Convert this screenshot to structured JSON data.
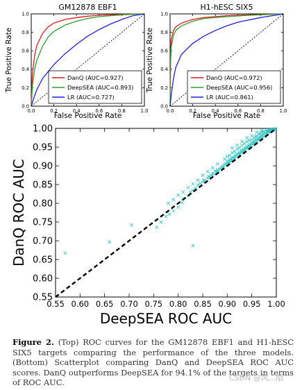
{
  "roc_panels": [
    {
      "title": "GM12878 EBF1",
      "xlabel": "False Positive Rate",
      "ylabel": "True Positive Rate",
      "xticks": [
        "0.0",
        "0.2",
        "0.4",
        "0.6",
        "0.8",
        "1.0"
      ],
      "yticks": [
        "0.0",
        "0.2",
        "0.4",
        "0.6",
        "0.8",
        "1.0"
      ],
      "legend": [
        {
          "label": "DanQ (AUC=0.927)",
          "color": "#e31a1c"
        },
        {
          "label": "DeepSEA (AUC=0.893)",
          "color": "#2ca02c"
        },
        {
          "label": "LR (AUC=0.727)",
          "color": "#1f1fd8"
        }
      ]
    },
    {
      "title": "H1-hESC SIX5",
      "xlabel": "False Positive Rate",
      "ylabel": "True Positive Rate",
      "xticks": [
        "0.0",
        "0.2",
        "0.4",
        "0.6",
        "0.8",
        "1.0"
      ],
      "yticks": [
        "0.0",
        "0.2",
        "0.4",
        "0.6",
        "0.8",
        "1.0"
      ],
      "legend": [
        {
          "label": "DanQ (AUC=0.972)",
          "color": "#e31a1c"
        },
        {
          "label": "DeepSEA (AUC=0.956)",
          "color": "#2ca02c"
        },
        {
          "label": "LR (AUC=0.861)",
          "color": "#1f1fd8"
        }
      ]
    }
  ],
  "scatter": {
    "xlabel": "DeepSEA ROC AUC",
    "ylabel": "DanQ ROC AUC",
    "xticks": [
      "0.55",
      "0.60",
      "0.65",
      "0.70",
      "0.75",
      "0.80",
      "0.85",
      "0.90",
      "0.95",
      "1.00"
    ],
    "yticks": [
      "0.55",
      "0.60",
      "0.65",
      "0.70",
      "0.75",
      "0.80",
      "0.85",
      "0.90",
      "0.95",
      "1.00"
    ],
    "marker_color": "#2ec4c4"
  },
  "caption": {
    "label": "Figure 2.",
    "text": " (Top) ROC curves for the GM12878 EBF1 and H1-hESC SIX5 targets comparing the performance of the three models. (Bottom) Scatterplot comparing DanQ and DeepSEA ROC AUC scores. DanQ outperforms DeepSEA for 94.1% of the targets in terms of ROC AUC."
  },
  "watermark": "CSDN @风...陌",
  "chart_data": [
    {
      "type": "line",
      "title": "GM12878 EBF1",
      "xlabel": "False Positive Rate",
      "ylabel": "True Positive Rate",
      "xlim": [
        0,
        1
      ],
      "ylim": [
        0,
        1
      ],
      "series": [
        {
          "name": "DanQ (AUC=0.927)",
          "x": [
            0,
            0.01,
            0.03,
            0.05,
            0.1,
            0.15,
            0.2,
            0.3,
            0.4,
            0.5,
            0.6,
            0.8,
            1.0
          ],
          "y": [
            0,
            0.35,
            0.55,
            0.66,
            0.79,
            0.86,
            0.9,
            0.94,
            0.96,
            0.975,
            0.985,
            0.995,
            1.0
          ]
        },
        {
          "name": "DeepSEA (AUC=0.893)",
          "x": [
            0,
            0.01,
            0.03,
            0.05,
            0.1,
            0.15,
            0.2,
            0.3,
            0.4,
            0.5,
            0.6,
            0.8,
            1.0
          ],
          "y": [
            0,
            0.22,
            0.4,
            0.5,
            0.65,
            0.75,
            0.81,
            0.88,
            0.92,
            0.95,
            0.97,
            0.99,
            1.0
          ]
        },
        {
          "name": "LR (AUC=0.727)",
          "x": [
            0,
            0.02,
            0.05,
            0.1,
            0.2,
            0.3,
            0.4,
            0.5,
            0.6,
            0.7,
            0.8,
            0.9,
            1.0
          ],
          "y": [
            0,
            0.08,
            0.18,
            0.3,
            0.45,
            0.57,
            0.67,
            0.76,
            0.83,
            0.89,
            0.94,
            0.98,
            1.0
          ]
        },
        {
          "name": "",
          "style": "dashed",
          "x": [
            0,
            1
          ],
          "y": [
            0,
            1
          ]
        }
      ]
    },
    {
      "type": "line",
      "title": "H1-hESC SIX5",
      "xlabel": "False Positive Rate",
      "ylabel": "True Positive Rate",
      "xlim": [
        0,
        1
      ],
      "ylim": [
        0,
        1
      ],
      "series": [
        {
          "name": "DanQ (AUC=0.972)",
          "x": [
            0,
            0.005,
            0.01,
            0.03,
            0.05,
            0.1,
            0.2,
            0.3,
            0.5,
            0.7,
            1.0
          ],
          "y": [
            0,
            0.6,
            0.72,
            0.82,
            0.86,
            0.9,
            0.94,
            0.96,
            0.98,
            0.99,
            1.0
          ]
        },
        {
          "name": "DeepSEA (AUC=0.956)",
          "x": [
            0,
            0.005,
            0.01,
            0.03,
            0.05,
            0.1,
            0.2,
            0.3,
            0.5,
            0.7,
            1.0
          ],
          "y": [
            0,
            0.5,
            0.64,
            0.77,
            0.82,
            0.87,
            0.92,
            0.95,
            0.97,
            0.985,
            1.0
          ]
        },
        {
          "name": "LR (AUC=0.861)",
          "x": [
            0,
            0.01,
            0.03,
            0.05,
            0.1,
            0.2,
            0.3,
            0.4,
            0.5,
            0.6,
            0.8,
            1.0
          ],
          "y": [
            0,
            0.12,
            0.3,
            0.42,
            0.56,
            0.68,
            0.76,
            0.82,
            0.87,
            0.91,
            0.96,
            1.0
          ]
        },
        {
          "name": "",
          "style": "dashed",
          "x": [
            0,
            1
          ],
          "y": [
            0,
            1
          ]
        }
      ]
    },
    {
      "type": "scatter",
      "xlabel": "DeepSEA ROC AUC",
      "ylabel": "DanQ ROC AUC",
      "xlim": [
        0.55,
        1.0
      ],
      "ylim": [
        0.55,
        1.0
      ],
      "diagonal": true,
      "points": [
        [
          0.57,
          0.667
        ],
        [
          0.66,
          0.697
        ],
        [
          0.705,
          0.742
        ],
        [
          0.83,
          0.687
        ],
        [
          0.756,
          0.736
        ],
        [
          0.765,
          0.75
        ],
        [
          0.775,
          0.765
        ],
        [
          0.782,
          0.771
        ],
        [
          0.79,
          0.78
        ],
        [
          0.8,
          0.79
        ],
        [
          0.808,
          0.802
        ],
        [
          0.81,
          0.812
        ],
        [
          0.82,
          0.82
        ],
        [
          0.825,
          0.83
        ],
        [
          0.83,
          0.835
        ],
        [
          0.835,
          0.84
        ],
        [
          0.84,
          0.849
        ],
        [
          0.845,
          0.853
        ],
        [
          0.85,
          0.858
        ],
        [
          0.852,
          0.863
        ],
        [
          0.855,
          0.86
        ],
        [
          0.86,
          0.867
        ],
        [
          0.862,
          0.872
        ],
        [
          0.865,
          0.87
        ],
        [
          0.868,
          0.876
        ],
        [
          0.87,
          0.88
        ],
        [
          0.872,
          0.878
        ],
        [
          0.875,
          0.886
        ],
        [
          0.878,
          0.884
        ],
        [
          0.88,
          0.89
        ],
        [
          0.882,
          0.888
        ],
        [
          0.885,
          0.893
        ],
        [
          0.888,
          0.895
        ],
        [
          0.89,
          0.898
        ],
        [
          0.892,
          0.9
        ],
        [
          0.894,
          0.903
        ],
        [
          0.896,
          0.905
        ],
        [
          0.898,
          0.907
        ],
        [
          0.9,
          0.91
        ],
        [
          0.902,
          0.912
        ],
        [
          0.904,
          0.914
        ],
        [
          0.906,
          0.916
        ],
        [
          0.908,
          0.918
        ],
        [
          0.91,
          0.92
        ],
        [
          0.912,
          0.922
        ],
        [
          0.914,
          0.924
        ],
        [
          0.916,
          0.926
        ],
        [
          0.918,
          0.928
        ],
        [
          0.92,
          0.93
        ],
        [
          0.922,
          0.932
        ],
        [
          0.924,
          0.934
        ],
        [
          0.926,
          0.936
        ],
        [
          0.928,
          0.938
        ],
        [
          0.93,
          0.94
        ],
        [
          0.932,
          0.942
        ],
        [
          0.934,
          0.944
        ],
        [
          0.936,
          0.946
        ],
        [
          0.938,
          0.948
        ],
        [
          0.94,
          0.95
        ],
        [
          0.942,
          0.952
        ],
        [
          0.944,
          0.954
        ],
        [
          0.946,
          0.956
        ],
        [
          0.948,
          0.958
        ],
        [
          0.95,
          0.96
        ],
        [
          0.952,
          0.962
        ],
        [
          0.954,
          0.964
        ],
        [
          0.956,
          0.966
        ],
        [
          0.958,
          0.968
        ],
        [
          0.96,
          0.97
        ],
        [
          0.962,
          0.972
        ],
        [
          0.964,
          0.974
        ],
        [
          0.966,
          0.976
        ],
        [
          0.968,
          0.978
        ],
        [
          0.97,
          0.98
        ],
        [
          0.972,
          0.982
        ],
        [
          0.974,
          0.984
        ],
        [
          0.976,
          0.986
        ],
        [
          0.978,
          0.988
        ],
        [
          0.98,
          0.99
        ],
        [
          0.982,
          0.991
        ],
        [
          0.984,
          0.992
        ],
        [
          0.986,
          0.993
        ],
        [
          0.988,
          0.994
        ],
        [
          0.99,
          0.995
        ],
        [
          0.992,
          0.996
        ],
        [
          0.994,
          0.997
        ],
        [
          0.996,
          0.998
        ],
        [
          0.998,
          0.999
        ],
        [
          0.88,
          0.905
        ],
        [
          0.9,
          0.925
        ],
        [
          0.91,
          0.935
        ],
        [
          0.93,
          0.955
        ],
        [
          0.95,
          0.97
        ],
        [
          0.955,
          0.975
        ],
        [
          0.96,
          0.98
        ],
        [
          0.965,
          0.985
        ],
        [
          0.97,
          0.99
        ],
        [
          0.975,
          0.992
        ],
        [
          0.98,
          0.995
        ],
        [
          0.985,
          0.997
        ],
        [
          0.94,
          0.965
        ],
        [
          0.92,
          0.945
        ],
        [
          0.935,
          0.96
        ],
        [
          0.945,
          0.968
        ],
        [
          0.958,
          0.978
        ],
        [
          0.967,
          0.987
        ],
        [
          0.973,
          0.99
        ],
        [
          0.985,
          0.994
        ],
        [
          0.99,
          0.997
        ],
        [
          0.895,
          0.918
        ],
        [
          0.905,
          0.928
        ],
        [
          0.915,
          0.938
        ],
        [
          0.925,
          0.948
        ],
        [
          0.87,
          0.895
        ],
        [
          0.86,
          0.885
        ],
        [
          0.85,
          0.875
        ],
        [
          0.84,
          0.862
        ],
        [
          0.83,
          0.852
        ],
        [
          0.82,
          0.842
        ],
        [
          0.81,
          0.83
        ],
        [
          0.8,
          0.822
        ],
        [
          0.79,
          0.81
        ],
        [
          0.78,
          0.8
        ],
        [
          0.96,
          0.965
        ],
        [
          0.97,
          0.975
        ],
        [
          0.975,
          0.978
        ],
        [
          0.98,
          0.984
        ],
        [
          0.985,
          0.989
        ],
        [
          0.99,
          0.993
        ],
        [
          0.995,
          0.998
        ],
        [
          0.93,
          0.936
        ],
        [
          0.94,
          0.946
        ],
        [
          0.95,
          0.955
        ],
        [
          0.91,
          0.914
        ],
        [
          0.9,
          0.905
        ],
        [
          0.89,
          0.893
        ],
        [
          0.88,
          0.882
        ],
        [
          0.965,
          0.97
        ],
        [
          0.955,
          0.96
        ],
        [
          0.945,
          0.95
        ],
        [
          0.935,
          0.94
        ],
        [
          0.925,
          0.93
        ],
        [
          0.915,
          0.92
        ],
        [
          0.905,
          0.91
        ],
        [
          0.95,
          0.98
        ],
        [
          0.96,
          0.99
        ],
        [
          0.97,
          0.995
        ],
        [
          0.94,
          0.975
        ],
        [
          0.93,
          0.965
        ],
        [
          0.92,
          0.955
        ],
        [
          0.91,
          0.948
        ]
      ]
    }
  ]
}
